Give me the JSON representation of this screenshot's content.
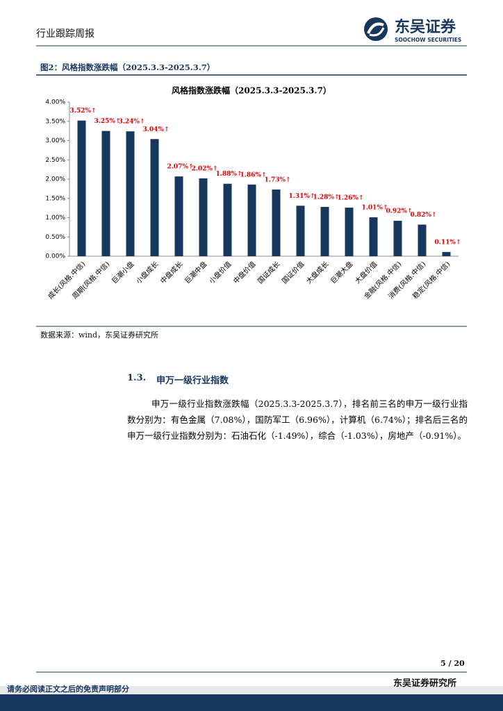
{
  "header": {
    "report_type": "行业跟踪周报",
    "brand": "东吴证券",
    "brand_en": "SOOCHOW SECURITIES"
  },
  "figure": {
    "caption": "图2：风格指数涨跌幅（2025.3.3-2025.3.7）",
    "source": "数据来源：wind，东吴证券研究所"
  },
  "chart_data": {
    "type": "bar",
    "title": "风格指数涨跌幅（2025.3.3-2025.3.7）",
    "categories": [
      "成长(风格.中信)",
      "周期(风格.中信)",
      "巨潮小盘",
      "小盘成长",
      "中盘成长",
      "巨潮中盘",
      "小盘价值",
      "中盘价值",
      "国证成长",
      "国证价值",
      "大盘成长",
      "巨潮大盘",
      "大盘价值",
      "金融(风格.中信)",
      "消费(风格.中信)",
      "稳定(风格.中信)"
    ],
    "values": [
      3.52,
      3.25,
      3.24,
      3.04,
      2.07,
      2.02,
      1.88,
      1.86,
      1.73,
      1.31,
      1.28,
      1.26,
      1.01,
      0.92,
      0.82,
      0.11
    ],
    "value_labels": [
      "3.52%↑",
      "3.25%↑",
      "3.24%↑",
      "3.04%↑",
      "2.07%↑",
      "2.02%↑",
      "1.88%↑",
      "1.86%↑",
      "1.73%↑",
      "1.31%↑",
      "1.28%↑",
      "1.26%↑",
      "1.01%↑",
      "0.92%↑",
      "0.82%↑",
      "0.11%↑"
    ],
    "color": "#17375e",
    "label_color": "#e00000",
    "ylim": [
      0,
      4
    ],
    "yticks": [
      {
        "value": 0,
        "label": "0.00%"
      },
      {
        "value": 0.5,
        "label": "0.50%"
      },
      {
        "value": 1,
        "label": "1.00%"
      },
      {
        "value": 1.5,
        "label": "1.50%"
      },
      {
        "value": 2,
        "label": "2.00%"
      },
      {
        "value": 2.5,
        "label": "2.50%"
      },
      {
        "value": 3,
        "label": "3.00%"
      },
      {
        "value": 3.5,
        "label": "3.50%"
      },
      {
        "value": 4,
        "label": "4.00%"
      }
    ],
    "grid": false
  },
  "section": {
    "number": "1.3.",
    "title": "申万一级行业指数",
    "paragraph": "申万一级行业指数涨跌幅（2025.3.3-2025.3.7），排名前三名的申万一级行业指数分别为：有色金属（7.08%），国防军工（6.96%），计算机（6.74%）；排名后三名的申万一级行业指数分别为：石油石化（-1.49%），综合（-1.03%），房地产（-0.91%）。"
  },
  "footer": {
    "page": "5 / 20",
    "org": "东吴证券研究所",
    "disclaimer": "请务必阅读正文之后的免责声明部分"
  }
}
